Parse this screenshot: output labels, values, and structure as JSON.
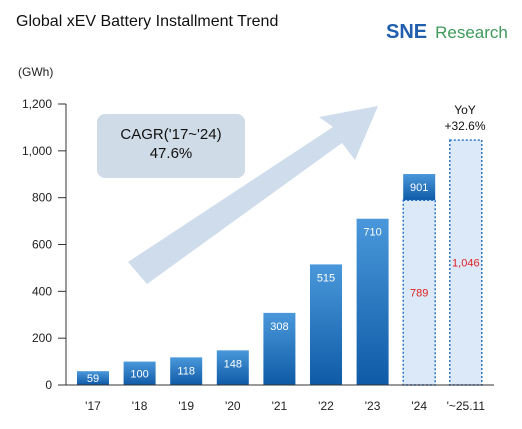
{
  "title": "Global xEV Battery Installment Trend",
  "logo": {
    "brand": "SNE",
    "suffix": "Research",
    "brand_color": "#1f5fae",
    "suffix_color": "#3d9a5a"
  },
  "unit_label": "(GWh)",
  "cagr": {
    "line1": "CAGR('17~'24)",
    "line2": "47.6%"
  },
  "yoy": {
    "line1": "YoY",
    "line2": "+32.6%"
  },
  "colors": {
    "bar_top": "#4a98db",
    "bar_bottom": "#0f5aa6",
    "dotted_fill": "#dce9f8",
    "dotted_stroke": "#1c6ec4",
    "highlight_value": "#e02020",
    "arrow": "#c9d8ea",
    "cagr_box": "#cfdbe6"
  },
  "chart_data": {
    "type": "bar",
    "categories": [
      "'17",
      "'18",
      "'19",
      "'20",
      "'21",
      "'22",
      "'23",
      "'24",
      "'~25.11"
    ],
    "values": [
      59,
      100,
      118,
      148,
      308,
      515,
      710,
      901,
      1046
    ],
    "partial_bars": [
      {
        "category": "'24",
        "value": 789
      },
      {
        "category": "'~25.11",
        "value": 1046
      }
    ],
    "data_labels": [
      "59",
      "100",
      "118",
      "148",
      "308",
      "515",
      "710",
      "901",
      "1,046"
    ],
    "partial_labels": [
      "789"
    ],
    "yticks": [
      0,
      200,
      400,
      600,
      800,
      1000,
      1200
    ],
    "ytick_labels": [
      "0",
      "200",
      "400",
      "600",
      "800",
      "1,000",
      "1,200"
    ],
    "ylim": [
      0,
      1200
    ],
    "grid": false,
    "legend": "none"
  }
}
